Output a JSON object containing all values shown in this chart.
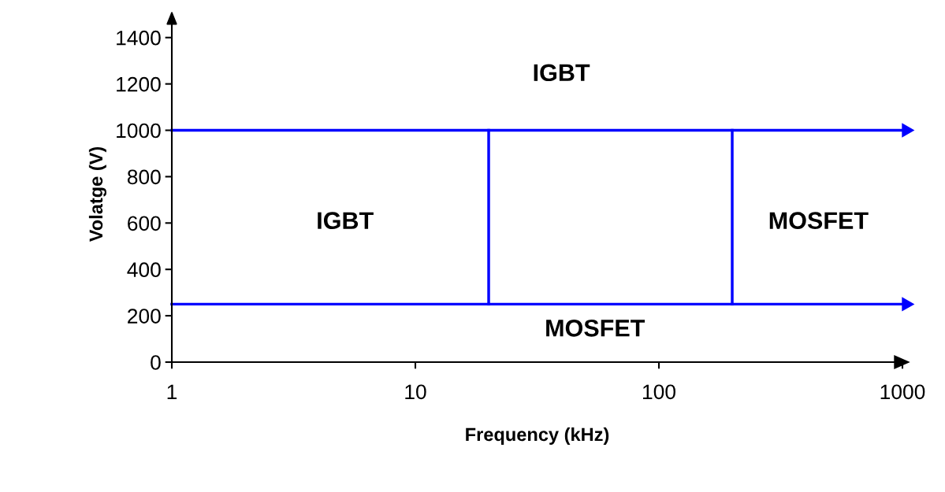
{
  "chart_data": {
    "type": "line",
    "xlabel": "Frequency (kHz)",
    "ylabel": "Volatge (V)",
    "log": "x",
    "xlim": [
      1,
      1000
    ],
    "xticks": [
      1,
      10,
      100,
      1000
    ],
    "ylim": [
      0,
      1450
    ],
    "yticks": [
      0,
      200,
      400,
      600,
      800,
      1000,
      1200,
      1400
    ],
    "series": [
      {
        "color": "#0000ff",
        "x": [
          1,
          1000
        ],
        "values": [
          1000,
          1000
        ]
      },
      {
        "color": "#0000ff",
        "x": [
          1,
          1000
        ],
        "values": [
          250,
          250
        ]
      },
      {
        "color": "#0000ff",
        "x": [
          20,
          20
        ],
        "values": [
          250,
          1000
        ]
      },
      {
        "color": "#0000ff",
        "x": [
          200,
          200
        ],
        "values": [
          250,
          1000
        ]
      }
    ],
    "annotations": [
      "IGBT",
      "IGBT",
      "MOSFET",
      "MOSFET"
    ],
    "grid": false,
    "legend": false,
    "marker": "none",
    "line_style": "solid"
  }
}
